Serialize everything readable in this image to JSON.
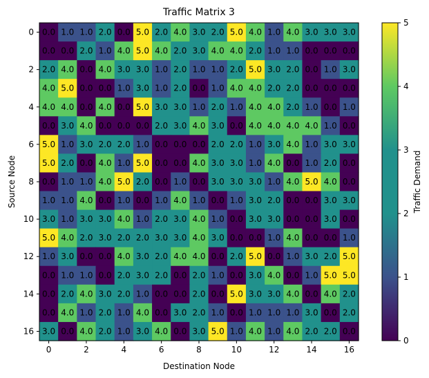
{
  "chart_data": {
    "type": "heatmap",
    "title": "Traffic Matrix 3",
    "xlabel": "Destination Node",
    "ylabel": "Source Node",
    "colorbar_label": "Traffic Demand",
    "colormap": "viridis",
    "vmin": 0,
    "vmax": 5,
    "x_ticks": [
      0,
      2,
      4,
      6,
      8,
      10,
      12,
      14,
      16
    ],
    "y_ticks": [
      0,
      2,
      4,
      6,
      8,
      10,
      12,
      14,
      16
    ],
    "colorbar_ticks": [
      0,
      1,
      2,
      3,
      4,
      5
    ],
    "matrix": [
      [
        0,
        1,
        1,
        2,
        0,
        5,
        2,
        4,
        3,
        2,
        5,
        4,
        1,
        4,
        3,
        3,
        3
      ],
      [
        0,
        0,
        2,
        1,
        4,
        5,
        4,
        2,
        3,
        4,
        4,
        2,
        1,
        1,
        0,
        0,
        0
      ],
      [
        2,
        4,
        0,
        4,
        3,
        3,
        1,
        2,
        1,
        1,
        2,
        5,
        3,
        2,
        0,
        1,
        3
      ],
      [
        4,
        5,
        0,
        0,
        1,
        3,
        1,
        2,
        0,
        1,
        4,
        4,
        2,
        2,
        0,
        0,
        0
      ],
      [
        4,
        4,
        0,
        4,
        0,
        5,
        3,
        3,
        1,
        2,
        1,
        4,
        4,
        2,
        1,
        0,
        1
      ],
      [
        0,
        3,
        4,
        0,
        0,
        0,
        2,
        3,
        4,
        3,
        0,
        4,
        4,
        4,
        4,
        1,
        0
      ],
      [
        5,
        1,
        3,
        2,
        2,
        1,
        0,
        0,
        0,
        2,
        2,
        1,
        3,
        4,
        1,
        3,
        3
      ],
      [
        5,
        2,
        0,
        4,
        1,
        5,
        0,
        0,
        4,
        3,
        3,
        1,
        4,
        0,
        1,
        2,
        0
      ],
      [
        0,
        1,
        1,
        4,
        5,
        2,
        0,
        1,
        0,
        3,
        3,
        3,
        1,
        4,
        5,
        4,
        0
      ],
      [
        1,
        1,
        4,
        0,
        1,
        0,
        1,
        4,
        1,
        0,
        1,
        3,
        2,
        0,
        0,
        3,
        3
      ],
      [
        3,
        1,
        3,
        3,
        4,
        1,
        2,
        3,
        4,
        1,
        0,
        3,
        3,
        0,
        0,
        3,
        0
      ],
      [
        5,
        4,
        2,
        3,
        2,
        2,
        3,
        3,
        4,
        3,
        0,
        0,
        1,
        4,
        0,
        0,
        1
      ],
      [
        1,
        3,
        0,
        0,
        4,
        3,
        2,
        4,
        4,
        0,
        2,
        5,
        0,
        1,
        3,
        2,
        5
      ],
      [
        0,
        1,
        1,
        0,
        2,
        3,
        2,
        0,
        2,
        1,
        0,
        3,
        4,
        0,
        1,
        5,
        5
      ],
      [
        0,
        2,
        4,
        3,
        2,
        1,
        0,
        0,
        2,
        0,
        5,
        3,
        3,
        4,
        0,
        4,
        2
      ],
      [
        0,
        4,
        1,
        2,
        1,
        4,
        0,
        3,
        2,
        1,
        0,
        1,
        1,
        1,
        3,
        0,
        2
      ],
      [
        3,
        0,
        4,
        2,
        1,
        3,
        4,
        0,
        3,
        5,
        1,
        4,
        1,
        4,
        2,
        2,
        0
      ]
    ]
  }
}
